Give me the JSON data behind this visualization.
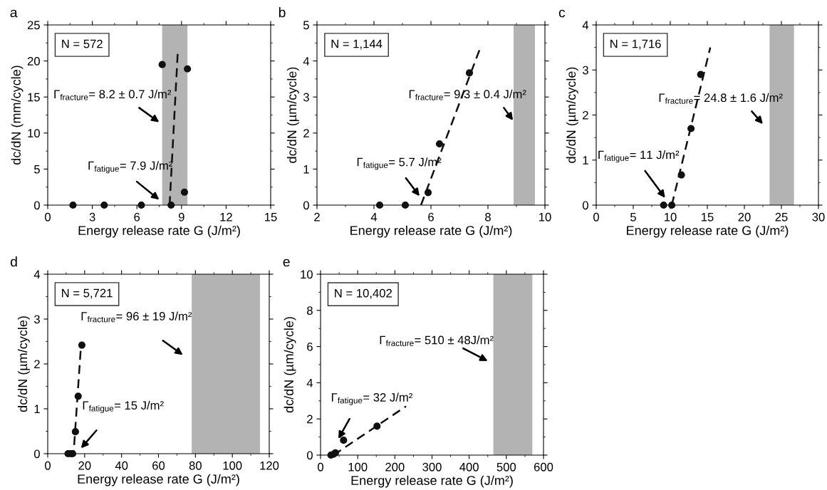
{
  "chart_data": [
    {
      "type": "scatter",
      "title": "a",
      "xlabel": "Energy release rate G (J/m²)",
      "ylabel": "dc/dN (mm/cycle)",
      "xlim": [
        0,
        15
      ],
      "xticks": [
        0,
        3,
        6,
        9,
        12,
        15
      ],
      "ylim": [
        0,
        25
      ],
      "yticks": [
        0,
        5,
        10,
        15,
        20,
        25
      ],
      "series": [
        {
          "marker": "circle",
          "color": "#111111",
          "x": [
            1.7,
            3.8,
            6.3,
            7.7,
            8.3,
            9.2,
            9.4
          ],
          "values": [
            0,
            0,
            0,
            19.5,
            0,
            1.8,
            18.9
          ]
        },
        {
          "type": "line",
          "marker": "none",
          "color": "#111111",
          "line_style": "dashed",
          "x": [
            8.2,
            8.75
          ],
          "values": [
            0,
            21.3
          ]
        }
      ],
      "bands": [
        {
          "axis": "x",
          "from": 7.7,
          "to": 9.4,
          "color": "#b3b3b3"
        }
      ],
      "annotations": [
        "N = 572",
        "Γ$_{fracture}$= 8.2 ± 0.7 J/m²",
        "Γ$_{fatigue}$= 7.9 J/m²"
      ]
    },
    {
      "type": "scatter",
      "title": "b",
      "xlabel": "Energy release rate G (J/m²)",
      "ylabel": "dc/dN (µm/cycle)",
      "xlim": [
        2,
        10
      ],
      "xticks": [
        2,
        4,
        6,
        8,
        10
      ],
      "ylim": [
        0,
        5
      ],
      "yticks": [
        0,
        1,
        2,
        3,
        4,
        5
      ],
      "series": [
        {
          "marker": "circle",
          "color": "#111111",
          "x": [
            4.2,
            5.1,
            5.9,
            6.3,
            7.35
          ],
          "values": [
            0,
            0,
            0.35,
            1.7,
            3.67
          ]
        },
        {
          "type": "line",
          "marker": "none",
          "color": "#111111",
          "line_style": "dashed",
          "x": [
            5.65,
            7.7
          ],
          "values": [
            0,
            4.3
          ]
        }
      ],
      "bands": [
        {
          "axis": "x",
          "from": 8.9,
          "to": 9.65,
          "color": "#b3b3b3"
        }
      ],
      "annotations": [
        "N = 1,144",
        "Γ$_{fracture}$= 9.3 ± 0.4 J/m²",
        "Γ$_{fatigue}$= 5.7 J/m²"
      ]
    },
    {
      "type": "scatter",
      "title": "c",
      "xlabel": "Energy release rate G (J/m²)",
      "ylabel": "dc/dN (µm/cycle)",
      "xlim": [
        0,
        30
      ],
      "xticks": [
        0,
        5,
        10,
        15,
        20,
        25,
        30
      ],
      "ylim": [
        0,
        4
      ],
      "yticks": [
        0,
        1,
        2,
        3,
        4
      ],
      "series": [
        {
          "marker": "circle",
          "color": "#111111",
          "x": [
            9.1,
            10.2,
            11.5,
            12.8,
            14.1
          ],
          "values": [
            0,
            0,
            0.67,
            1.7,
            2.9
          ]
        },
        {
          "type": "line",
          "marker": "none",
          "color": "#111111",
          "line_style": "dashed",
          "x": [
            10.2,
            15.4
          ],
          "values": [
            0,
            3.5
          ]
        }
      ],
      "bands": [
        {
          "axis": "x",
          "from": 23.4,
          "to": 26.7,
          "color": "#b3b3b3"
        }
      ],
      "annotations": [
        "N = 1,716",
        "Γ$_{fracture}$= 24.8 ± 1.6 J/m²",
        "Γ$_{fatigue}$= 11 J/m²"
      ]
    },
    {
      "type": "scatter",
      "title": "d",
      "xlabel": "Energy release rate G (J/m²)",
      "ylabel": "dc/dN (µm/cycle)",
      "xlim": [
        0,
        120
      ],
      "xticks": [
        0,
        20,
        40,
        60,
        80,
        100,
        120
      ],
      "ylim": [
        0,
        4
      ],
      "yticks": [
        0,
        1,
        2,
        3,
        4
      ],
      "series": [
        {
          "marker": "circle",
          "color": "#111111",
          "x": [
            11,
            12.5,
            13.5,
            15,
            16.5,
            18.5
          ],
          "values": [
            0,
            0,
            0,
            0.49,
            1.28,
            2.42
          ]
        },
        {
          "type": "line",
          "marker": "none",
          "color": "#111111",
          "line_style": "dashed",
          "x": [
            11,
            14,
            18
          ],
          "values": [
            0,
            0,
            2.4
          ]
        }
      ],
      "bands": [
        {
          "axis": "x",
          "from": 78,
          "to": 115,
          "color": "#b3b3b3"
        }
      ],
      "annotations": [
        "N = 5,721",
        "Γ$_{fracture}$= 96 ± 19 J/m²",
        "Γ$_{fatigue}$= 15 J/m²"
      ]
    },
    {
      "type": "scatter",
      "title": "e",
      "xlabel": "Energy release rate G (J/m²)",
      "ylabel": "dc/dN (µm/cycle)",
      "xlim": [
        0,
        600
      ],
      "xticks": [
        0,
        100,
        200,
        300,
        400,
        500,
        600
      ],
      "ylim": [
        0,
        10
      ],
      "yticks": [
        0,
        2,
        4,
        6,
        8,
        10
      ],
      "series": [
        {
          "marker": "circle",
          "color": "#111111",
          "x": [
            28,
            35,
            40,
            62,
            152
          ],
          "values": [
            0,
            0.05,
            0.12,
            0.82,
            1.6
          ]
        },
        {
          "type": "line",
          "marker": "none",
          "color": "#111111",
          "line_style": "dashed",
          "x": [
            35,
            230
          ],
          "values": [
            0,
            2.7
          ]
        }
      ],
      "bands": [
        {
          "axis": "x",
          "from": 465,
          "to": 570,
          "color": "#b3b3b3"
        }
      ],
      "annotations": [
        "N = 10,402",
        "Γ$_{fracture}$= 510 ± 48J/m²",
        "Γ$_{fatigue}$= 32 J/m²"
      ]
    }
  ]
}
